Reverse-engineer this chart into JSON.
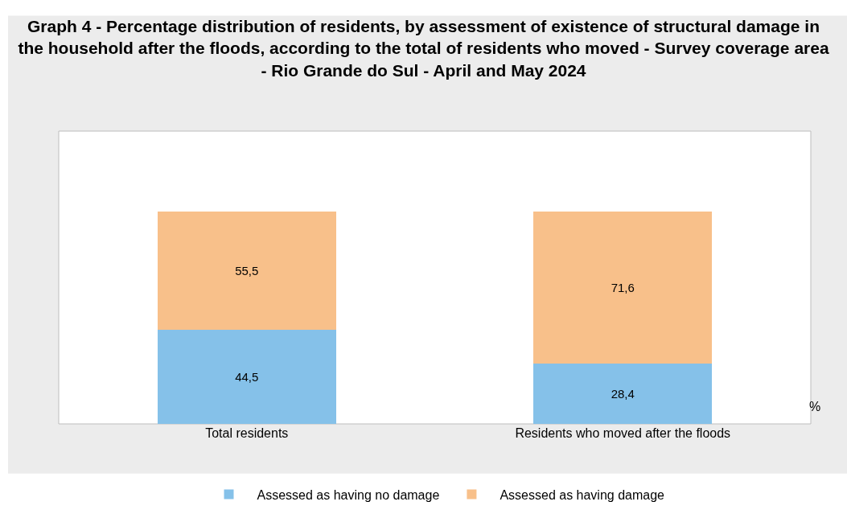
{
  "chart_data": {
    "type": "bar",
    "title": "Graph 4 - Percentage distribution of residents, by assessment of existence of structural damage in the household after the floods, according to the total of residents who moved - Survey coverage area - Rio Grande do Sul - April and May 2024",
    "ylabel": "%",
    "categories": [
      "Total residents",
      "Residents who moved after the floods"
    ],
    "stacked": true,
    "series": [
      {
        "name": "Assessed as having no damage",
        "color": "#85c1e9",
        "values": [
          44.5,
          28.4
        ],
        "value_labels": [
          "44,5",
          "28,4"
        ]
      },
      {
        "name": "Assessed as having damage",
        "color": "#f8c08a",
        "values": [
          55.5,
          71.6
        ],
        "value_labels": [
          "55,5",
          "71,6"
        ]
      }
    ],
    "ylim": [
      0,
      138
    ],
    "tick_labels": "x",
    "grid": false,
    "legend": "bottom"
  }
}
